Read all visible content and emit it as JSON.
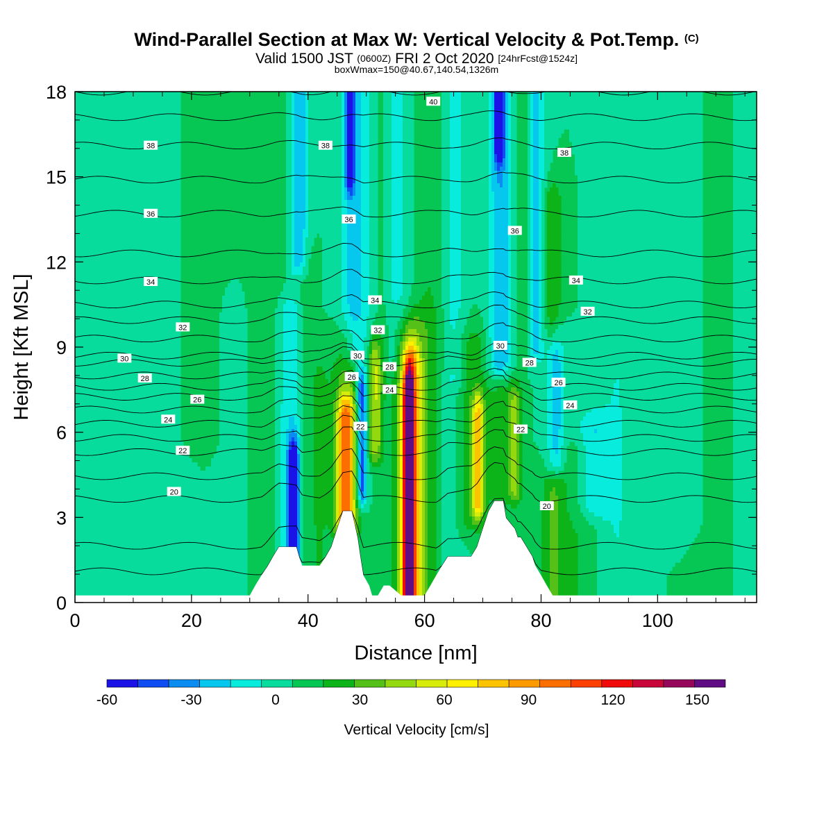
{
  "header": {
    "title": "Wind-Parallel Section at Max W: Vertical Velocity & Pot.Temp.",
    "title_mark": "(C)",
    "subtitle_a": "Valid 1500 JST",
    "subtitle_b": "(0600Z)",
    "subtitle_c": "FRI 2 Oct 2020",
    "subtitle_d": "[24hrFcst@1524z]",
    "subtitle2": "boxWmax=150@40.67,140.54,1326m"
  },
  "chart_data": {
    "type": "heatmap",
    "xlabel": "Distance [nm]",
    "ylabel": "Height [Kft MSL]",
    "xlim": [
      0,
      117
    ],
    "ylim": [
      0,
      18
    ],
    "x_ticks": [
      0,
      20,
      40,
      60,
      80,
      100
    ],
    "x_tick_labels": [
      "0",
      "20",
      "40",
      "60",
      "80",
      "100"
    ],
    "y_ticks": [
      0,
      3,
      6,
      9,
      12,
      15,
      18
    ],
    "y_tick_labels": [
      "0",
      "3",
      "6",
      "9",
      "12",
      "15",
      "18"
    ],
    "colorbar": {
      "label": "Vertical Velocity [cm/s]",
      "min": -60,
      "max": 160,
      "step": 10,
      "tick_values": [
        -60,
        -30,
        0,
        30,
        60,
        90,
        120,
        150
      ],
      "tick_labels": [
        "-60",
        "-30",
        "0",
        "30",
        "60",
        "90",
        "120",
        "150"
      ],
      "colors": [
        "#1a12e6",
        "#0f4cf2",
        "#0a8cf0",
        "#06c8ee",
        "#08ecde",
        "#08dc9c",
        "#06c654",
        "#0cb41a",
        "#54c018",
        "#94d810",
        "#d8ec0c",
        "#fff000",
        "#fcc400",
        "#fc9a00",
        "#fc6e00",
        "#fc4000",
        "#f00a0a",
        "#c8063a",
        "#96065a",
        "#600c84"
      ]
    },
    "terrain": [
      [
        0,
        0.25
      ],
      [
        30,
        0.25
      ],
      [
        31,
        0.62
      ],
      [
        32,
        0.96
      ],
      [
        33,
        1.26
      ],
      [
        34,
        1.62
      ],
      [
        35,
        1.96
      ],
      [
        38,
        1.96
      ],
      [
        38.5,
        1.6
      ],
      [
        39,
        1.3
      ],
      [
        42,
        1.3
      ],
      [
        43,
        1.6
      ],
      [
        44,
        1.96
      ],
      [
        45,
        2.6
      ],
      [
        46,
        3.22
      ],
      [
        47.5,
        3.22
      ],
      [
        48.5,
        2.3
      ],
      [
        49,
        1.6
      ],
      [
        49.5,
        0.96
      ],
      [
        50.5,
        0.6
      ],
      [
        51,
        0.25
      ],
      [
        52,
        0.25
      ],
      [
        53,
        0.6
      ],
      [
        54,
        0.6
      ],
      [
        56,
        0.25
      ],
      [
        60,
        0.25
      ],
      [
        61,
        0.6
      ],
      [
        62,
        0.96
      ],
      [
        63,
        1.3
      ],
      [
        64,
        1.62
      ],
      [
        68,
        1.62
      ],
      [
        69,
        1.96
      ],
      [
        70,
        2.6
      ],
      [
        71,
        3.22
      ],
      [
        72,
        3.58
      ],
      [
        73.5,
        3.58
      ],
      [
        74,
        2.98
      ],
      [
        75.5,
        2.6
      ],
      [
        76,
        2.3
      ],
      [
        76.5,
        2.3
      ],
      [
        77.5,
        1.96
      ],
      [
        78.5,
        1.62
      ],
      [
        79,
        1.3
      ],
      [
        80,
        0.96
      ],
      [
        81,
        0.6
      ],
      [
        82,
        0.25
      ],
      [
        117,
        0.25
      ]
    ],
    "w_field": {
      "background": 0,
      "features": [
        {
          "x": 13,
          "w": 4,
          "h0": 0,
          "h1": 18,
          "v": -8
        },
        {
          "x": 33,
          "w": 3,
          "h0": 0,
          "h1": 18,
          "v": 8
        },
        {
          "x": 37.5,
          "w": 0.9,
          "h0": 1.6,
          "h1": 5,
          "v": -60
        },
        {
          "x": 37,
          "w": 2.5,
          "h0": 1.2,
          "h1": 10,
          "v": -20
        },
        {
          "x": 39.5,
          "w": 1.5,
          "h0": 0,
          "h1": 12,
          "v": 10
        },
        {
          "x": 38.5,
          "w": 1.5,
          "h0": 12,
          "h1": 18,
          "v": -30
        },
        {
          "x": 42,
          "w": 1.8,
          "h0": 1,
          "h1": 8,
          "v": 10
        },
        {
          "x": 46.5,
          "w": 1.5,
          "h0": 2.5,
          "h1": 6.5,
          "v": 70
        },
        {
          "x": 46.5,
          "w": 2.5,
          "h0": 3,
          "h1": 9,
          "v": 20
        },
        {
          "x": 49.2,
          "w": 0.9,
          "h0": 4,
          "h1": 7.5,
          "v": -50
        },
        {
          "x": 48,
          "w": 2.5,
          "h0": 9,
          "h1": 18,
          "v": -25
        },
        {
          "x": 47.2,
          "w": 0.7,
          "h0": 15,
          "h1": 18,
          "v": -50
        },
        {
          "x": 51.5,
          "w": 1.2,
          "h0": 5.5,
          "h1": 8.5,
          "v": 40
        },
        {
          "x": 53,
          "w": 1.5,
          "h0": 8,
          "h1": 18,
          "v": 8
        },
        {
          "x": 57.3,
          "w": 0.7,
          "h0": 0.3,
          "h1": 7.2,
          "v": 125
        },
        {
          "x": 57.5,
          "w": 1.6,
          "h0": 0.3,
          "h1": 8.3,
          "v": 70
        },
        {
          "x": 57.5,
          "w": 3,
          "h0": 0,
          "h1": 9.5,
          "v": 25
        },
        {
          "x": 55,
          "w": 2.5,
          "h0": 8.5,
          "h1": 18,
          "v": -15
        },
        {
          "x": 61,
          "w": 3,
          "h0": 0,
          "h1": 18,
          "v": 10
        },
        {
          "x": 64,
          "w": 2,
          "h0": 1.6,
          "h1": 7,
          "v": -10
        },
        {
          "x": 65,
          "w": 2,
          "h0": 8,
          "h1": 18,
          "v": -15
        },
        {
          "x": 69.2,
          "w": 1,
          "h0": 3.5,
          "h1": 6.5,
          "v": 55
        },
        {
          "x": 68,
          "w": 3,
          "h0": 3,
          "h1": 9,
          "v": 15
        },
        {
          "x": 73,
          "w": 2,
          "h0": 8.5,
          "h1": 18,
          "v": -30
        },
        {
          "x": 72.8,
          "w": 0.8,
          "h0": 16,
          "h1": 18,
          "v": -50
        },
        {
          "x": 73,
          "w": 2,
          "h0": 4,
          "h1": 7,
          "v": 15
        },
        {
          "x": 75.5,
          "w": 1.2,
          "h0": 4,
          "h1": 7,
          "v": 30
        },
        {
          "x": 77,
          "w": 1.5,
          "h0": 9,
          "h1": 18,
          "v": 10
        },
        {
          "x": 79,
          "w": 1.5,
          "h0": 9,
          "h1": 18,
          "v": -25
        },
        {
          "x": 82.5,
          "w": 1.5,
          "h0": 5,
          "h1": 9,
          "v": -25
        },
        {
          "x": 82,
          "w": 1.5,
          "h0": 9.5,
          "h1": 14,
          "v": 20
        },
        {
          "x": 82,
          "w": 2,
          "h0": 0.3,
          "h1": 4,
          "v": 20
        },
        {
          "x": 86,
          "w": 3,
          "h0": 0,
          "h1": 5,
          "v": 10
        },
        {
          "x": 89,
          "w": 3,
          "h0": 3.5,
          "h1": 6,
          "v": -20
        },
        {
          "x": 93,
          "w": 2.5,
          "h0": 0,
          "h1": 18,
          "v": -10
        },
        {
          "x": 104,
          "w": 4,
          "h0": 3,
          "h1": 18,
          "v": -10
        },
        {
          "x": 110,
          "w": 2.5,
          "h0": 0,
          "h1": 18,
          "v": 10
        },
        {
          "x": 115,
          "w": 2,
          "h0": 0,
          "h1": 18,
          "v": -8
        },
        {
          "x": 22,
          "w": 3,
          "h0": 6,
          "h1": 18,
          "v": 8
        },
        {
          "x": 27,
          "w": 2,
          "h0": 0,
          "h1": 10,
          "v": -8
        }
      ]
    },
    "theta_contours": {
      "levels": [
        18,
        19,
        20,
        21,
        22,
        23,
        24,
        25,
        26,
        27,
        28,
        29,
        30,
        31,
        32,
        33,
        34,
        35,
        36,
        37,
        38,
        39,
        40
      ],
      "base_height": [
        1.1,
        2.0,
        3.65,
        4.45,
        5.3,
        5.8,
        6.3,
        6.8,
        7.25,
        7.6,
        8.0,
        8.45,
        8.7,
        9.3,
        9.95,
        10.5,
        11.35,
        12.3,
        13.7,
        14.9,
        16.1,
        17.1,
        18.0
      ],
      "labels": [
        {
          "level": 20,
          "text": "20",
          "x": 17,
          "y": 3.9
        },
        {
          "level": 20,
          "text": "20",
          "x": 81,
          "y": 3.4
        },
        {
          "level": 22,
          "text": "22",
          "x": 18.5,
          "y": 5.35
        },
        {
          "level": 22,
          "text": "22",
          "x": 76.5,
          "y": 6.1
        },
        {
          "level": 22,
          "text": "22",
          "x": 49,
          "y": 6.2
        },
        {
          "level": 24,
          "text": "24",
          "x": 16,
          "y": 6.45
        },
        {
          "level": 24,
          "text": "24",
          "x": 54,
          "y": 7.5
        },
        {
          "level": 24,
          "text": "24",
          "x": 85,
          "y": 6.95
        },
        {
          "level": 26,
          "text": "26",
          "x": 21,
          "y": 7.15
        },
        {
          "level": 26,
          "text": "26",
          "x": 47.5,
          "y": 7.95
        },
        {
          "level": 26,
          "text": "26",
          "x": 83,
          "y": 7.75
        },
        {
          "level": 28,
          "text": "28",
          "x": 12,
          "y": 7.9
        },
        {
          "level": 28,
          "text": "28",
          "x": 54,
          "y": 8.3
        },
        {
          "level": 28,
          "text": "28",
          "x": 78,
          "y": 8.45
        },
        {
          "level": 30,
          "text": "30",
          "x": 8.5,
          "y": 8.6
        },
        {
          "level": 30,
          "text": "30",
          "x": 48.5,
          "y": 8.7
        },
        {
          "level": 30,
          "text": "30",
          "x": 73,
          "y": 9.05
        },
        {
          "level": 32,
          "text": "32",
          "x": 18.5,
          "y": 9.7
        },
        {
          "level": 32,
          "text": "32",
          "x": 52,
          "y": 9.6
        },
        {
          "level": 32,
          "text": "32",
          "x": 88,
          "y": 10.25
        },
        {
          "level": 34,
          "text": "34",
          "x": 13,
          "y": 11.3
        },
        {
          "level": 34,
          "text": "34",
          "x": 51.5,
          "y": 10.65
        },
        {
          "level": 34,
          "text": "34",
          "x": 86,
          "y": 11.35
        },
        {
          "level": 36,
          "text": "36",
          "x": 13,
          "y": 13.7
        },
        {
          "level": 36,
          "text": "36",
          "x": 47,
          "y": 13.5
        },
        {
          "level": 36,
          "text": "36",
          "x": 75.5,
          "y": 13.1
        },
        {
          "level": 38,
          "text": "38",
          "x": 13,
          "y": 16.1
        },
        {
          "level": 38,
          "text": "38",
          "x": 43,
          "y": 16.1
        },
        {
          "level": 38,
          "text": "38",
          "x": 84,
          "y": 15.85
        },
        {
          "level": 40,
          "text": "40",
          "x": 61.5,
          "y": 17.65
        }
      ]
    }
  }
}
